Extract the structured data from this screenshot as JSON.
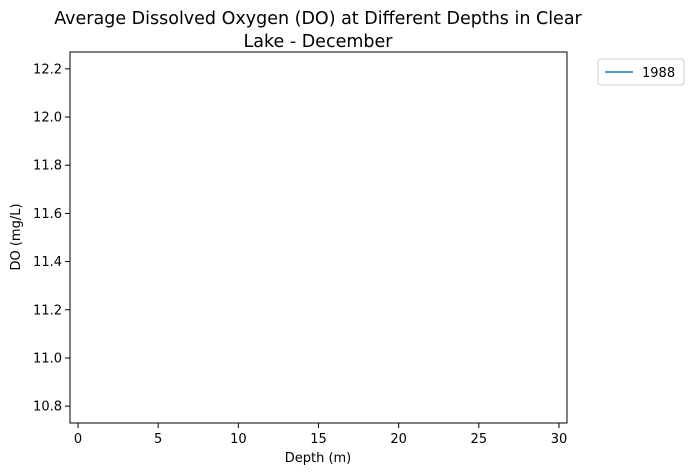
{
  "chart_data": {
    "type": "line",
    "title_lines": [
      "Average Dissolved Oxygen (DO) at Different Depths in Clear",
      "Lake - December"
    ],
    "xlabel": "Depth (m)",
    "ylabel": "DO (mg/L)",
    "xlim": [
      -0.5,
      30.5
    ],
    "ylim": [
      10.73,
      12.27
    ],
    "x_ticks": [
      0,
      5,
      10,
      15,
      20,
      25,
      30
    ],
    "y_ticks": [
      10.8,
      11.0,
      11.2,
      11.4,
      11.6,
      11.8,
      12.0,
      12.2
    ],
    "y_tick_labels": [
      "10.8",
      "11.0",
      "11.2",
      "11.4",
      "11.6",
      "11.8",
      "12.0",
      "12.2"
    ],
    "grid": false,
    "legend_position": "outside-top-right",
    "series": [
      {
        "name": "1988",
        "color": "#1f77b4",
        "x": [],
        "y": []
      }
    ]
  }
}
